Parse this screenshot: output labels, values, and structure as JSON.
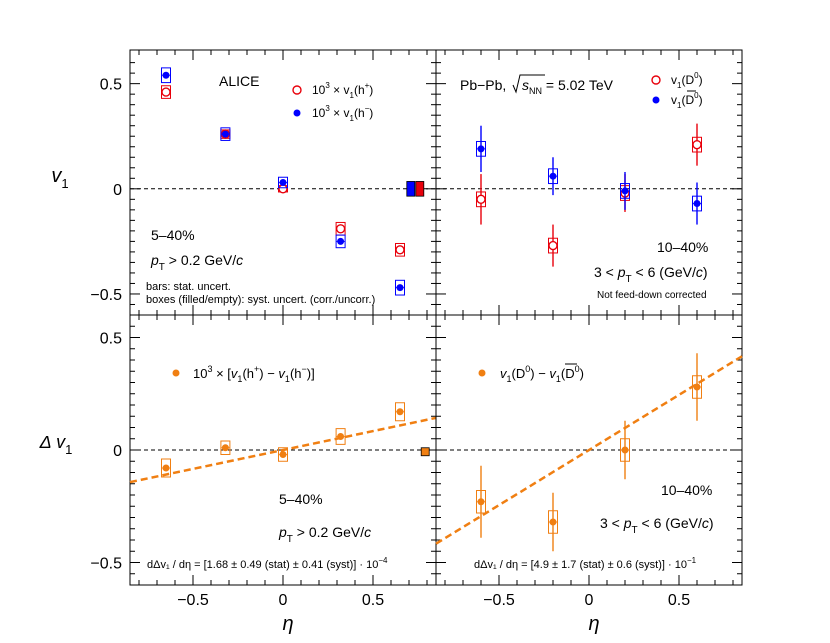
{
  "colors": {
    "blue": "#0000ff",
    "red": "#e8000b",
    "orange": "#f07f12",
    "black": "#000000"
  },
  "axes": {
    "x_label": "η",
    "y_label_top": "v",
    "y_label_top_sub": "1",
    "y_label_bottom": "Δ v",
    "y_label_bottom_sub": "1"
  },
  "chart_data": [
    {
      "id": "top-left",
      "type": "scatter",
      "xlim": [
        -0.85,
        0.85
      ],
      "ylim": [
        -0.6,
        0.66
      ],
      "yticks": [
        -0.5,
        0,
        0.5
      ],
      "ytick_labels": [
        "−0.5",
        "0",
        "0.5"
      ],
      "series": [
        {
          "name": "10³ × v₁(h⁺)",
          "marker": "open-circle",
          "color": "red",
          "x": [
            -0.65,
            -0.32,
            0.0,
            0.32,
            0.65
          ],
          "y": [
            0.46,
            0.26,
            0.0,
            -0.19,
            -0.29
          ],
          "err": [
            0.005,
            0.005,
            0.005,
            0.005,
            0.005
          ],
          "syst": [
            0.03,
            0.02,
            0.015,
            0.03,
            0.03
          ]
        },
        {
          "name": "10³ × v₁(h⁻)",
          "marker": "filled-circle",
          "color": "blue",
          "x": [
            -0.65,
            -0.32,
            0.0,
            0.32,
            0.65
          ],
          "y": [
            0.54,
            0.26,
            0.03,
            -0.25,
            -0.47
          ],
          "err": [
            0.005,
            0.005,
            0.005,
            0.005,
            0.005
          ],
          "syst": [
            0.035,
            0.03,
            0.025,
            0.03,
            0.035
          ]
        }
      ],
      "corr_boxes": [
        {
          "x": 0.71,
          "color": "blue",
          "lo": -0.035,
          "hi": 0.035
        },
        {
          "x": 0.76,
          "color": "red",
          "lo": -0.035,
          "hi": 0.035
        }
      ]
    },
    {
      "id": "top-right",
      "type": "scatter",
      "xlim": [
        -0.85,
        0.85
      ],
      "ylim": [
        -0.6,
        0.66
      ],
      "series": [
        {
          "name": "v₁(D⁰)",
          "marker": "open-circle",
          "color": "red",
          "x": [
            -0.6,
            -0.2,
            0.2,
            0.6
          ],
          "y": [
            -0.05,
            -0.27,
            -0.02,
            0.21
          ],
          "err": [
            0.12,
            0.1,
            0.09,
            0.1
          ],
          "syst": [
            0.035,
            0.035,
            0.035,
            0.035
          ]
        },
        {
          "name": "v₁(D̄⁰)",
          "marker": "filled-circle",
          "color": "blue",
          "x": [
            -0.6,
            -0.2,
            0.2,
            0.6
          ],
          "y": [
            0.19,
            0.06,
            -0.01,
            -0.07
          ],
          "err": [
            0.11,
            0.09,
            0.09,
            0.1
          ],
          "syst": [
            0.035,
            0.035,
            0.035,
            0.035
          ]
        }
      ]
    },
    {
      "id": "bottom-left",
      "type": "scatter",
      "xlim": [
        -0.85,
        0.85
      ],
      "ylim": [
        -0.6,
        0.6
      ],
      "yticks": [
        -0.5,
        0,
        0.5
      ],
      "ytick_labels": [
        "−0.5",
        "0",
        "0.5"
      ],
      "xticks": [
        -0.5,
        0,
        0.5
      ],
      "xtick_labels": [
        "−0.5",
        "0",
        "0.5"
      ],
      "series": [
        {
          "name": "10³ × [v₁(h⁺) − v₁(h⁻)]",
          "marker": "filled-circle",
          "color": "orange",
          "x": [
            -0.65,
            -0.32,
            0.0,
            0.32,
            0.65
          ],
          "y": [
            -0.08,
            0.01,
            -0.02,
            0.06,
            0.17
          ],
          "err": [
            0.005,
            0.005,
            0.005,
            0.005,
            0.005
          ],
          "syst": [
            0.04,
            0.03,
            0.03,
            0.035,
            0.04
          ]
        }
      ],
      "fit": {
        "slope": 0.168,
        "intercept": 0.0
      },
      "corr_boxes": [
        {
          "x": 0.79,
          "color": "orange",
          "lo": -0.01,
          "hi": 0.01
        }
      ]
    },
    {
      "id": "bottom-right",
      "type": "scatter",
      "xlim": [
        -0.85,
        0.85
      ],
      "ylim": [
        -0.6,
        0.6
      ],
      "xticks": [
        -0.5,
        0,
        0.5
      ],
      "xtick_labels": [
        "−0.5",
        "0",
        "0.5"
      ],
      "series": [
        {
          "name": "v₁(D⁰) − v₁(D̄⁰)",
          "marker": "filled-circle",
          "color": "orange",
          "x": [
            -0.6,
            -0.2,
            0.2,
            0.6
          ],
          "y": [
            -0.23,
            -0.32,
            0.0,
            0.28
          ],
          "err": [
            0.16,
            0.13,
            0.13,
            0.15
          ],
          "syst": [
            0.05,
            0.05,
            0.05,
            0.05
          ]
        }
      ],
      "fit": {
        "slope": 0.49,
        "intercept": 0.0
      }
    }
  ],
  "labels": {
    "alice": "ALICE",
    "collision": "Pb−Pb, ",
    "sqrt_s": "s",
    "sqrt_s_sub": "NN",
    "energy": " = 5.02 TeV",
    "legend_hplus_pre": "10",
    "legend_hplus_exp": "3",
    "legend_hplus_mid": " × v",
    "legend_hplus_sub": "1",
    "legend_hplus_par": "(h",
    "legend_hplus_charge": "+",
    "legend_hminus_charge": "−",
    "legend_close": ")",
    "legend_d0": "v",
    "legend_d0_sub": "1",
    "legend_d0_par": "(D",
    "legend_d0_exp": "0",
    "legend_dbar_par": "(D",
    "centrality_tl": "5–40%",
    "pt_tl_pre": "p",
    "pt_tl_sub": "T",
    "pt_tl_post": " > 0.2 GeV/",
    "pt_tl_c": "c",
    "bars_note": "bars: stat. uncert.",
    "boxes_note": "boxes (filled/empty): syst. uncert. (corr./uncorr.)",
    "centrality_tr": "10–40%",
    "pt_tr_pre": "3 < ",
    "pt_tr_p": "p",
    "pt_tr_sub": "T",
    "pt_tr_post": " < 6 (GeV/",
    "pt_tr_c": "c",
    "pt_tr_close": ")",
    "feeddown_note": "Not feed-down corrected",
    "diff_legend_bl_pre": "10",
    "diff_legend_bl_exp": "3",
    "diff_legend_bl_mid": " ×  [",
    "diff_legend_bl_v": "v",
    "diff_legend_bl_sub": "1",
    "diff_legend_bl_h": "(h",
    "diff_legend_bl_plus": "+",
    "diff_legend_bl_minus_sep": ") − ",
    "diff_legend_bl_minus": "−",
    "diff_legend_bl_end": ")]",
    "diff_legend_br_v": "v",
    "diff_legend_br_sub": "1",
    "diff_legend_br_d": "(D",
    "diff_legend_br_exp": "0",
    "diff_legend_br_sep": ") − ",
    "diff_legend_br_end": ")",
    "centrality_bl": "5–40%",
    "centrality_br": "10–40%",
    "slope_bl": "dΔv₁ / dη = [1.68 ± 0.49 (stat) ± 0.41 (syst)] · 10",
    "slope_bl_exp": "−4",
    "slope_br": "dΔv₁ / dη = [4.9 ± 1.7 (stat) ± 0.6 (syst)] · 10",
    "slope_br_exp": "−1"
  }
}
